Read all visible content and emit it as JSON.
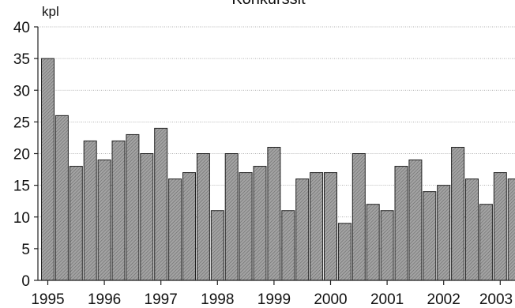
{
  "chart_data": {
    "type": "bar",
    "title": "Konkurssit",
    "unit_label": "kpl",
    "ylim": [
      0,
      40
    ],
    "y_ticks": [
      0,
      5,
      10,
      15,
      20,
      25,
      30,
      35,
      40
    ],
    "grid": "horizontal",
    "x_tick_labels": [
      "1995",
      "1996",
      "1997",
      "1998",
      "1999",
      "2000",
      "2001",
      "2002",
      "2003"
    ],
    "bars_per_year": 4,
    "values": [
      35,
      26,
      18,
      22,
      19,
      22,
      23,
      20,
      24,
      16,
      17,
      20,
      11,
      20,
      17,
      18,
      21,
      11,
      16,
      17,
      17,
      9,
      20,
      12,
      11,
      18,
      19,
      14,
      15,
      21,
      16,
      12,
      17,
      16
    ],
    "colors": {
      "bar_fill": "#9e9e9e",
      "bar_hatch": "#6b6b6b"
    }
  }
}
